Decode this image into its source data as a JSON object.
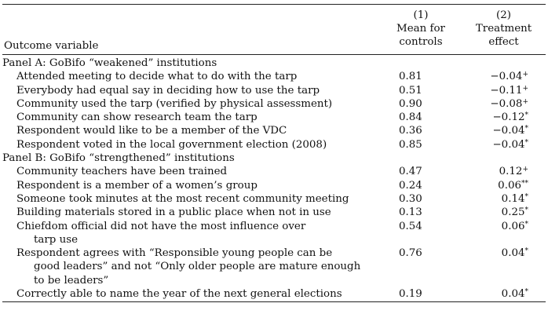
{
  "header": {
    "col1_num": "(1)",
    "col1_line1": "Mean for",
    "col1_line2": "controls",
    "col2_num": "(2)",
    "col2_line1": "Treatment",
    "col2_line2": "effect",
    "outcome_label": "Outcome variable"
  },
  "panel_a": {
    "title": "Panel A: GoBifo “weakened” institutions",
    "rows": [
      {
        "label": "Attended meeting to decide what to do with the tarp",
        "mean": "0.81",
        "effect": "−0.04",
        "sig": "+"
      },
      {
        "label": "Everybody had equal say in deciding how to use the tarp",
        "mean": "0.51",
        "effect": "−0.11",
        "sig": "+"
      },
      {
        "label": "Community used the tarp (verified by physical assessment)",
        "mean": "0.90",
        "effect": "−0.08",
        "sig": "+"
      },
      {
        "label": "Community can show research team the tarp",
        "mean": "0.84",
        "effect": "−0.12",
        "sig": "*"
      },
      {
        "label": "Respondent would like to be a member of the VDC",
        "mean": "0.36",
        "effect": "−0.04",
        "sig": "*"
      },
      {
        "label": "Respondent voted in the local government election (2008)",
        "mean": "0.85",
        "effect": "−0.04",
        "sig": "*"
      }
    ]
  },
  "panel_b": {
    "title": "Panel B: GoBifo “strengthened” institutions",
    "rows": [
      {
        "label": "Community teachers have been trained",
        "mean": "0.47",
        "effect": "0.12",
        "sig": "+"
      },
      {
        "label": "Respondent is a member of a women’s group",
        "mean": "0.24",
        "effect": "0.06",
        "sig": "**"
      },
      {
        "label": "Someone took minutes at the most recent community meeting",
        "mean": "0.30",
        "effect": "0.14",
        "sig": "*"
      },
      {
        "label": "Building materials stored in a public place when not in use",
        "mean": "0.13",
        "effect": "0.25",
        "sig": "*"
      },
      {
        "label": "Chiefdom official did not have the most influence over",
        "label_cont": "tarp use",
        "mean": "0.54",
        "effect": "0.06",
        "sig": "*"
      },
      {
        "label": "Respondent agrees with “Responsible young people can be",
        "label_cont": "good leaders” and not “Only older people are mature enough",
        "label_cont2": "to be leaders”",
        "mean": "0.76",
        "effect": "0.04",
        "sig": "*"
      },
      {
        "label": "Correctly able to name the year of the next general elections",
        "mean": "0.19",
        "effect": "0.04",
        "sig": "*"
      }
    ]
  }
}
